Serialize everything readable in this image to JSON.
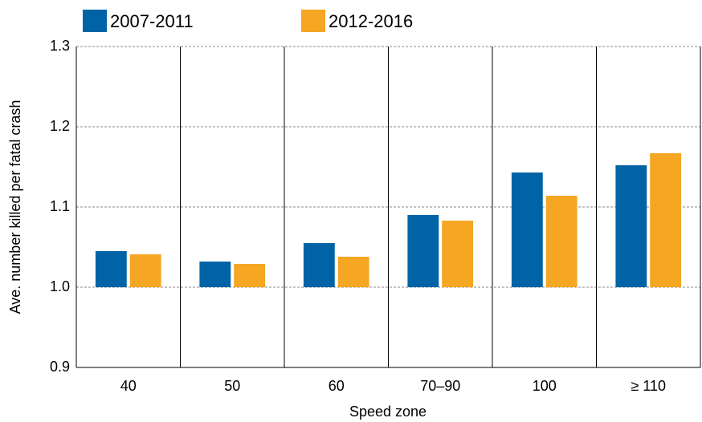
{
  "chart_data": {
    "type": "bar",
    "x_label": "Speed zone",
    "y_label": "Ave. number killed per fatal crash",
    "categories": [
      "40",
      "50",
      "60",
      "70–90",
      "100",
      "≥ 110"
    ],
    "series": [
      {
        "name": "2007-2011",
        "color": "#0063a6",
        "values": [
          1.045,
          1.032,
          1.055,
          1.09,
          1.143,
          1.152
        ]
      },
      {
        "name": "2012-2016",
        "color": "#f5a623",
        "values": [
          1.041,
          1.029,
          1.038,
          1.083,
          1.114,
          1.167
        ]
      }
    ],
    "base": 1,
    "ylim": [
      0.9,
      1.3
    ],
    "yticks": [
      0.9,
      {
        "value": 1,
        "label": "1.0"
      },
      1.1,
      1.2,
      1.3
    ],
    "grid": true
  }
}
